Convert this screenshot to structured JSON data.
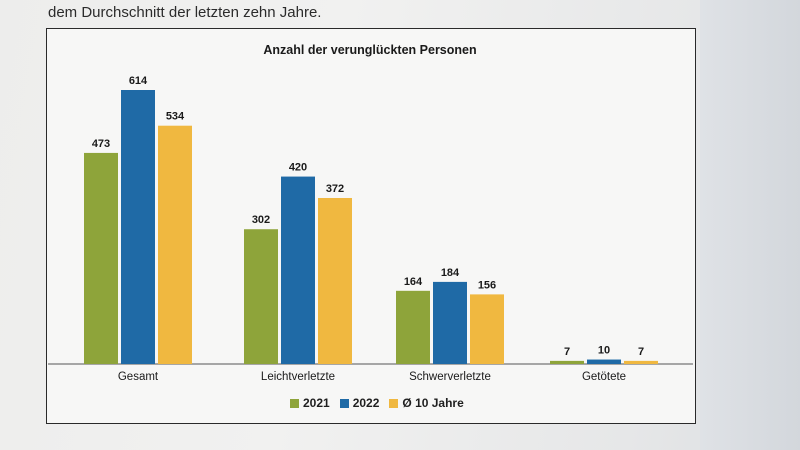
{
  "intro": {
    "text": "dem Durchschnitt der letzten zehn Jahre."
  },
  "chart_data": {
    "type": "bar",
    "title": "Anzahl der verunglückten Personen",
    "categories": [
      "Gesamt",
      "Leichtverletzte",
      "Schwerverletzte",
      "Getötete"
    ],
    "series": [
      {
        "name": "2021",
        "values": [
          473,
          302,
          164,
          7
        ],
        "color": "#8ea43a"
      },
      {
        "name": "2022",
        "values": [
          614,
          420,
          184,
          10
        ],
        "color": "#1f6aa6"
      },
      {
        "name": "Ø 10 Jahre",
        "values": [
          534,
          372,
          156,
          7
        ],
        "color": "#f0b840"
      }
    ],
    "ylim": [
      0,
      614
    ],
    "grid": false,
    "legend_position": "bottom-center"
  }
}
